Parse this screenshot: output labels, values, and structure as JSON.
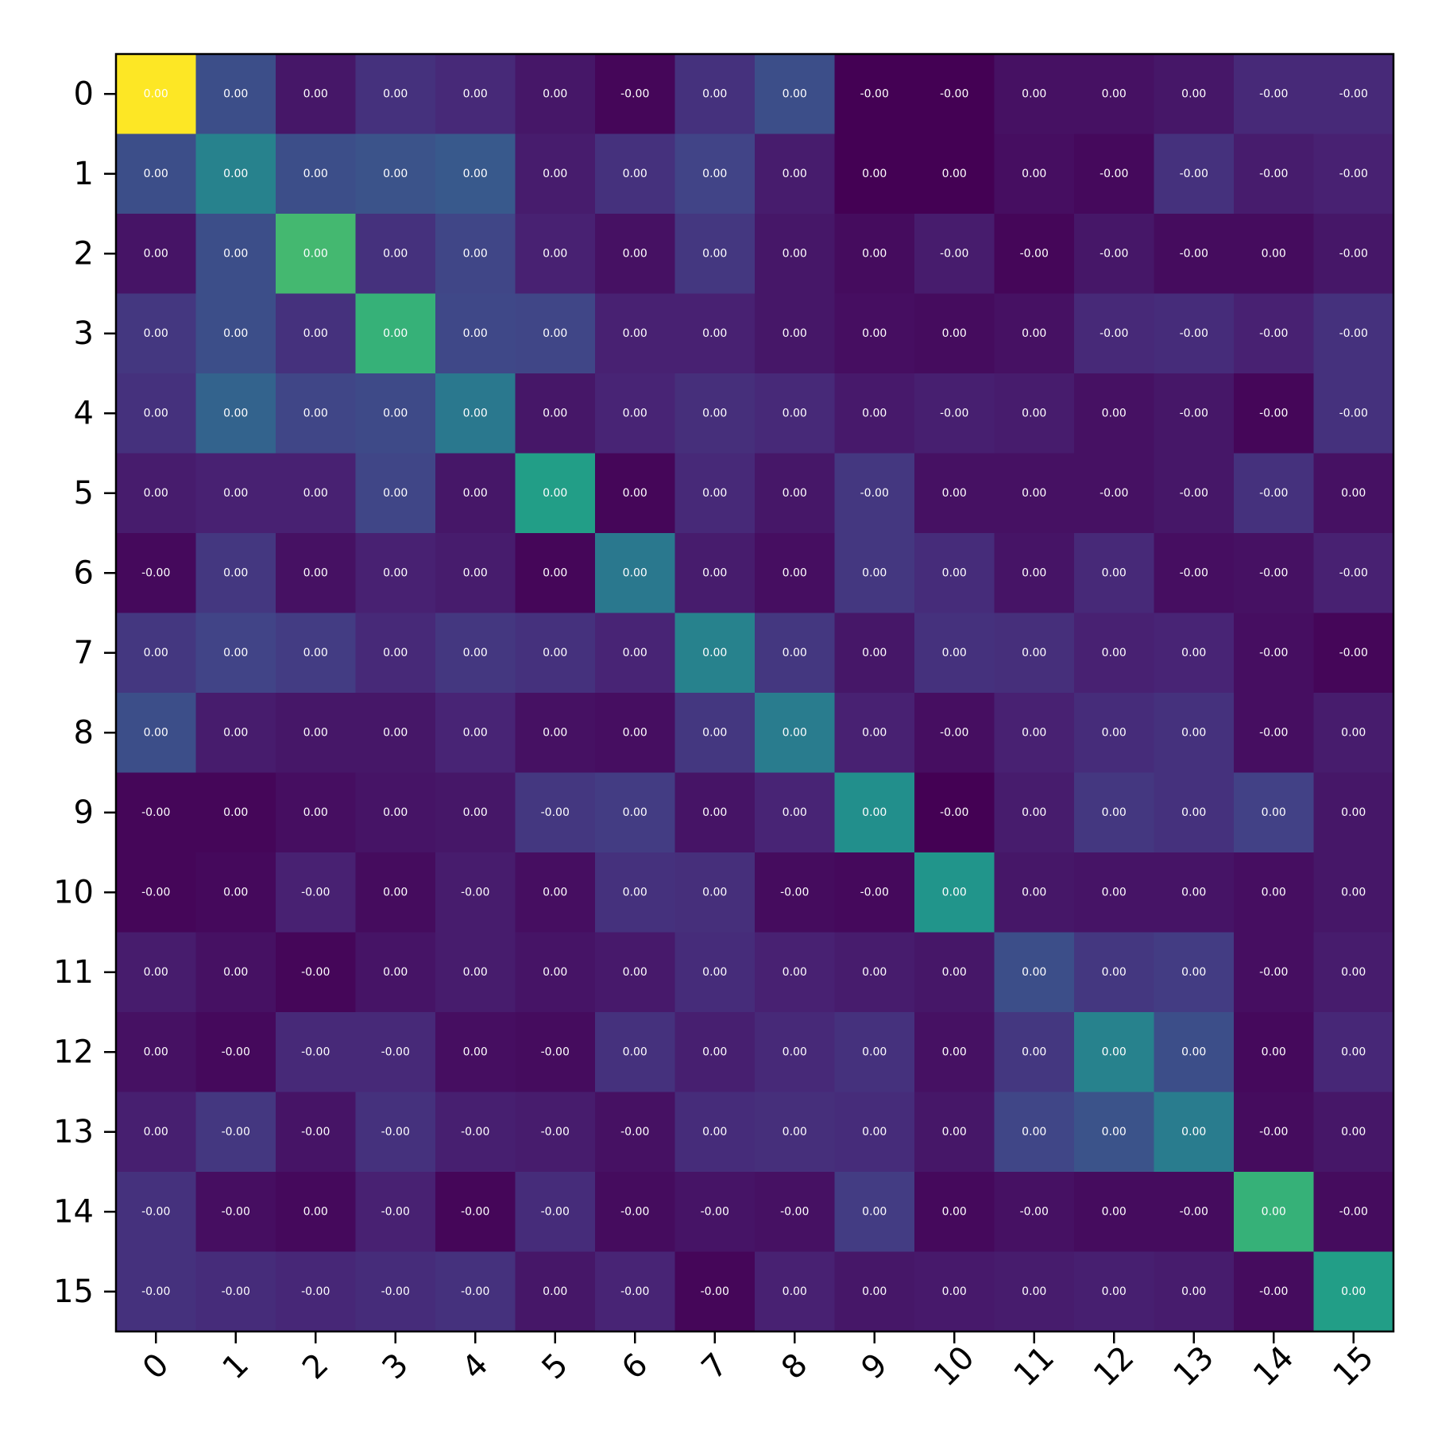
{
  "chart_data": {
    "type": "heatmap",
    "title": "",
    "xlabel": "",
    "ylabel": "",
    "colormap": "viridis",
    "x_categories": [
      "0",
      "1",
      "2",
      "3",
      "4",
      "5",
      "6",
      "7",
      "8",
      "9",
      "10",
      "11",
      "12",
      "13",
      "14",
      "15"
    ],
    "y_categories": [
      "0",
      "1",
      "2",
      "3",
      "4",
      "5",
      "6",
      "7",
      "8",
      "9",
      "10",
      "11",
      "12",
      "13",
      "14",
      "15"
    ],
    "x_tick_rotation": -45,
    "cell_labels": [
      [
        "0.00",
        "0.00",
        "0.00",
        "0.00",
        "0.00",
        "0.00",
        "-0.00",
        "0.00",
        "0.00",
        "-0.00",
        "-0.00",
        "0.00",
        "0.00",
        "0.00",
        "-0.00",
        "-0.00"
      ],
      [
        "0.00",
        "0.00",
        "0.00",
        "0.00",
        "0.00",
        "0.00",
        "0.00",
        "0.00",
        "0.00",
        "0.00",
        "0.00",
        "0.00",
        "-0.00",
        "-0.00",
        "-0.00",
        "-0.00"
      ],
      [
        "0.00",
        "0.00",
        "0.00",
        "0.00",
        "0.00",
        "0.00",
        "0.00",
        "0.00",
        "0.00",
        "0.00",
        "-0.00",
        "-0.00",
        "-0.00",
        "-0.00",
        "0.00",
        "-0.00"
      ],
      [
        "0.00",
        "0.00",
        "0.00",
        "0.00",
        "0.00",
        "0.00",
        "0.00",
        "0.00",
        "0.00",
        "0.00",
        "0.00",
        "0.00",
        "-0.00",
        "-0.00",
        "-0.00",
        "-0.00"
      ],
      [
        "0.00",
        "0.00",
        "0.00",
        "0.00",
        "0.00",
        "0.00",
        "0.00",
        "0.00",
        "0.00",
        "0.00",
        "-0.00",
        "0.00",
        "0.00",
        "-0.00",
        "-0.00",
        "-0.00"
      ],
      [
        "0.00",
        "0.00",
        "0.00",
        "0.00",
        "0.00",
        "0.00",
        "0.00",
        "0.00",
        "0.00",
        "-0.00",
        "0.00",
        "0.00",
        "-0.00",
        "-0.00",
        "-0.00",
        "0.00"
      ],
      [
        "-0.00",
        "0.00",
        "0.00",
        "0.00",
        "0.00",
        "0.00",
        "0.00",
        "0.00",
        "0.00",
        "0.00",
        "0.00",
        "0.00",
        "0.00",
        "-0.00",
        "-0.00",
        "-0.00"
      ],
      [
        "0.00",
        "0.00",
        "0.00",
        "0.00",
        "0.00",
        "0.00",
        "0.00",
        "0.00",
        "0.00",
        "0.00",
        "0.00",
        "0.00",
        "0.00",
        "0.00",
        "-0.00",
        "-0.00"
      ],
      [
        "0.00",
        "0.00",
        "0.00",
        "0.00",
        "0.00",
        "0.00",
        "0.00",
        "0.00",
        "0.00",
        "0.00",
        "-0.00",
        "0.00",
        "0.00",
        "0.00",
        "-0.00",
        "0.00"
      ],
      [
        "-0.00",
        "0.00",
        "0.00",
        "0.00",
        "0.00",
        "-0.00",
        "0.00",
        "0.00",
        "0.00",
        "0.00",
        "-0.00",
        "0.00",
        "0.00",
        "0.00",
        "0.00",
        "0.00"
      ],
      [
        "-0.00",
        "0.00",
        "-0.00",
        "0.00",
        "-0.00",
        "0.00",
        "0.00",
        "0.00",
        "-0.00",
        "-0.00",
        "0.00",
        "0.00",
        "0.00",
        "0.00",
        "0.00",
        "0.00"
      ],
      [
        "0.00",
        "0.00",
        "-0.00",
        "0.00",
        "0.00",
        "0.00",
        "0.00",
        "0.00",
        "0.00",
        "0.00",
        "0.00",
        "0.00",
        "0.00",
        "0.00",
        "-0.00",
        "0.00"
      ],
      [
        "0.00",
        "-0.00",
        "-0.00",
        "-0.00",
        "0.00",
        "-0.00",
        "0.00",
        "0.00",
        "0.00",
        "0.00",
        "0.00",
        "0.00",
        "0.00",
        "0.00",
        "0.00",
        "0.00"
      ],
      [
        "0.00",
        "-0.00",
        "-0.00",
        "-0.00",
        "-0.00",
        "-0.00",
        "-0.00",
        "0.00",
        "0.00",
        "0.00",
        "0.00",
        "0.00",
        "0.00",
        "0.00",
        "-0.00",
        "0.00"
      ],
      [
        "-0.00",
        "-0.00",
        "0.00",
        "-0.00",
        "-0.00",
        "-0.00",
        "-0.00",
        "-0.00",
        "-0.00",
        "0.00",
        "0.00",
        "-0.00",
        "0.00",
        "-0.00",
        "0.00",
        "-0.00"
      ],
      [
        "-0.00",
        "-0.00",
        "-0.00",
        "-0.00",
        "-0.00",
        "0.00",
        "-0.00",
        "-0.00",
        "0.00",
        "0.00",
        "0.00",
        "0.00",
        "0.00",
        "0.00",
        "-0.00",
        "0.00"
      ]
    ],
    "color_levels": [
      [
        1.0,
        0.3,
        0.08,
        0.18,
        0.15,
        0.08,
        0.02,
        0.18,
        0.3,
        0.0,
        0.0,
        0.06,
        0.06,
        0.08,
        0.15,
        0.15
      ],
      [
        0.3,
        0.55,
        0.3,
        0.32,
        0.35,
        0.1,
        0.18,
        0.25,
        0.1,
        0.0,
        0.0,
        0.05,
        0.03,
        0.18,
        0.1,
        0.12
      ],
      [
        0.07,
        0.3,
        0.8,
        0.18,
        0.26,
        0.12,
        0.06,
        0.2,
        0.08,
        0.04,
        0.1,
        0.02,
        0.08,
        0.04,
        0.04,
        0.08
      ],
      [
        0.2,
        0.3,
        0.18,
        0.78,
        0.27,
        0.26,
        0.12,
        0.12,
        0.08,
        0.05,
        0.04,
        0.06,
        0.15,
        0.16,
        0.12,
        0.18
      ],
      [
        0.18,
        0.4,
        0.26,
        0.28,
        0.5,
        0.08,
        0.13,
        0.17,
        0.15,
        0.09,
        0.11,
        0.1,
        0.06,
        0.08,
        0.02,
        0.18
      ],
      [
        0.1,
        0.12,
        0.12,
        0.26,
        0.08,
        0.7,
        0.02,
        0.15,
        0.08,
        0.2,
        0.06,
        0.06,
        0.06,
        0.08,
        0.18,
        0.06
      ],
      [
        0.03,
        0.2,
        0.06,
        0.12,
        0.1,
        0.02,
        0.5,
        0.1,
        0.05,
        0.2,
        0.16,
        0.07,
        0.15,
        0.05,
        0.06,
        0.12
      ],
      [
        0.2,
        0.25,
        0.22,
        0.15,
        0.2,
        0.18,
        0.13,
        0.55,
        0.2,
        0.08,
        0.18,
        0.17,
        0.12,
        0.13,
        0.05,
        0.02
      ],
      [
        0.3,
        0.1,
        0.08,
        0.08,
        0.13,
        0.06,
        0.05,
        0.2,
        0.52,
        0.12,
        0.05,
        0.12,
        0.16,
        0.18,
        0.05,
        0.1
      ],
      [
        0.02,
        0.02,
        0.05,
        0.07,
        0.08,
        0.2,
        0.22,
        0.07,
        0.13,
        0.62,
        0.0,
        0.1,
        0.2,
        0.18,
        0.24,
        0.08
      ],
      [
        0.02,
        0.03,
        0.12,
        0.04,
        0.1,
        0.05,
        0.18,
        0.17,
        0.04,
        0.03,
        0.65,
        0.08,
        0.07,
        0.07,
        0.05,
        0.08
      ],
      [
        0.1,
        0.06,
        0.02,
        0.07,
        0.1,
        0.07,
        0.09,
        0.16,
        0.12,
        0.1,
        0.08,
        0.3,
        0.2,
        0.22,
        0.05,
        0.1
      ],
      [
        0.06,
        0.03,
        0.15,
        0.15,
        0.05,
        0.04,
        0.18,
        0.11,
        0.15,
        0.18,
        0.06,
        0.2,
        0.55,
        0.3,
        0.03,
        0.14
      ],
      [
        0.11,
        0.2,
        0.07,
        0.18,
        0.11,
        0.1,
        0.06,
        0.16,
        0.17,
        0.16,
        0.08,
        0.26,
        0.32,
        0.52,
        0.04,
        0.08
      ],
      [
        0.18,
        0.05,
        0.03,
        0.12,
        0.02,
        0.16,
        0.04,
        0.07,
        0.06,
        0.22,
        0.03,
        0.06,
        0.04,
        0.04,
        0.78,
        0.04
      ],
      [
        0.18,
        0.16,
        0.14,
        0.16,
        0.18,
        0.08,
        0.13,
        0.02,
        0.12,
        0.08,
        0.09,
        0.1,
        0.11,
        0.1,
        0.04,
        0.7
      ]
    ]
  }
}
